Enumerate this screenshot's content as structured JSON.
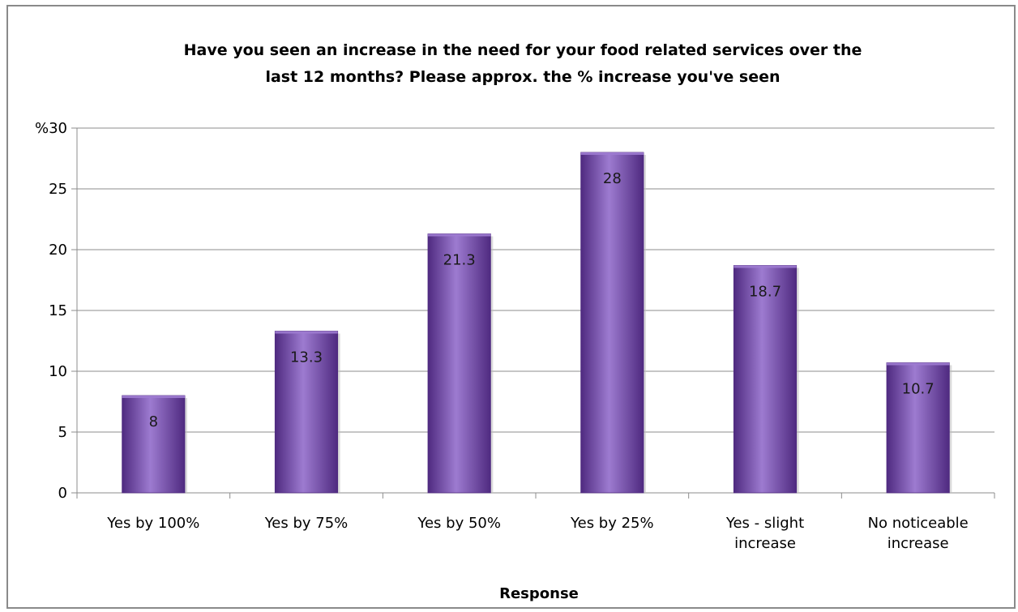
{
  "chart_data": {
    "type": "bar",
    "title_lines": [
      "Have you seen an increase in the need for your food related services over the",
      "last 12 months? Please approx. the % increase you've seen"
    ],
    "categories": [
      [
        "Yes by 100%"
      ],
      [
        "Yes by 75%"
      ],
      [
        "Yes by 50%"
      ],
      [
        "Yes by 25%"
      ],
      [
        "Yes - slight",
        "increase"
      ],
      [
        "No noticeable",
        "increase"
      ]
    ],
    "values": [
      8,
      13.3,
      21.3,
      28,
      18.7,
      10.7
    ],
    "value_labels": [
      "8",
      "13.3",
      "21.3",
      "28",
      "18.7",
      "10.7"
    ],
    "xlabel": "Response",
    "y_unit_prefix": "%",
    "ylim": [
      0,
      30
    ],
    "yticks": [
      0,
      5,
      10,
      15,
      20,
      25,
      30
    ],
    "grid": true,
    "legend": "none",
    "bar_color": "#7a4fb0",
    "bar_color_dark": "#4f2a80",
    "bar_color_light": "#9d7bd0"
  }
}
